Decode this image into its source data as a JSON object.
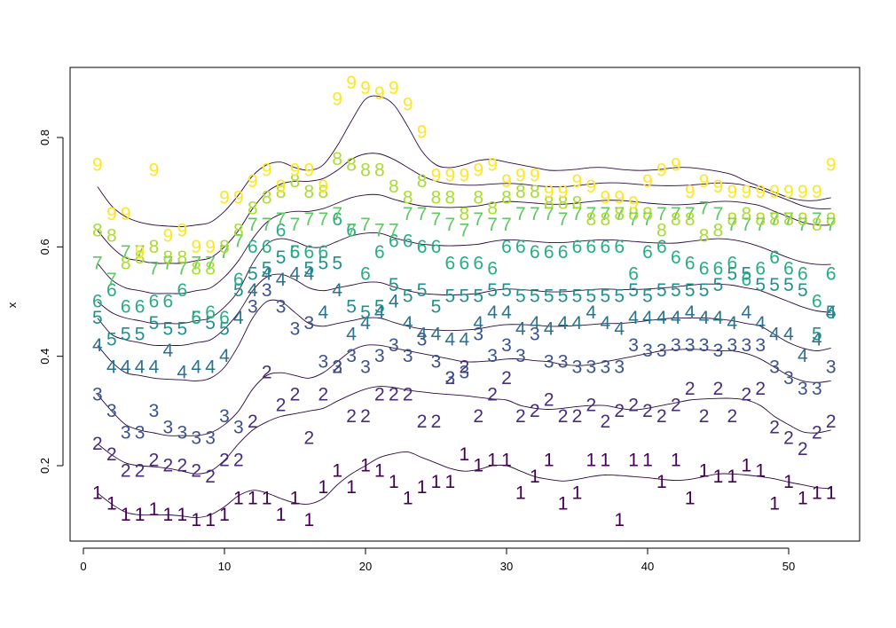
{
  "chart_data": {
    "type": "line",
    "xlabel": "",
    "ylabel": "x",
    "xlim": [
      0,
      55
    ],
    "ylim": [
      0.07,
      0.93
    ],
    "x_ticks": [
      0,
      10,
      20,
      30,
      40,
      50
    ],
    "y_ticks": [
      0.2,
      0.4,
      0.6,
      0.8
    ],
    "y_tick_labels": [
      "0.2",
      "0.4",
      "0.6",
      "0.8"
    ],
    "grid": false,
    "legend": "none",
    "x": [
      1,
      2,
      3,
      4,
      5,
      6,
      7,
      8,
      9,
      10,
      11,
      12,
      13,
      14,
      15,
      16,
      17,
      18,
      19,
      20,
      21,
      22,
      23,
      24,
      25,
      26,
      27,
      28,
      29,
      30,
      31,
      32,
      33,
      34,
      35,
      36,
      37,
      38,
      39,
      40,
      41,
      42,
      43,
      44,
      45,
      46,
      47,
      48,
      49,
      50,
      51,
      52,
      53
    ],
    "series": [
      {
        "name": "1",
        "color": "#440154",
        "symbol": "1",
        "values": [
          0.15,
          0.13,
          0.11,
          0.11,
          0.12,
          0.11,
          0.11,
          0.1,
          0.1,
          0.11,
          0.14,
          0.14,
          0.14,
          0.11,
          0.14,
          0.1,
          0.16,
          0.19,
          0.16,
          0.2,
          0.19,
          0.17,
          0.14,
          0.16,
          0.17,
          0.17,
          0.22,
          0.2,
          0.21,
          0.21,
          0.15,
          0.18,
          0.21,
          0.13,
          0.15,
          0.21,
          0.21,
          0.1,
          0.21,
          0.21,
          0.17,
          0.21,
          0.14,
          0.19,
          0.18,
          0.18,
          0.2,
          0.19,
          0.13,
          0.17,
          0.14,
          0.15,
          0.15
        ],
        "curve": [
          0.15,
          0.13,
          0.115,
          0.11,
          0.11,
          0.11,
          0.108,
          0.105,
          0.11,
          0.125,
          0.145,
          0.155,
          0.15,
          0.14,
          0.132,
          0.13,
          0.14,
          0.165,
          0.185,
          0.2,
          0.215,
          0.222,
          0.225,
          0.215,
          0.205,
          0.195,
          0.19,
          0.193,
          0.2,
          0.2,
          0.19,
          0.18,
          0.175,
          0.172,
          0.175,
          0.18,
          0.183,
          0.182,
          0.18,
          0.178,
          0.175,
          0.173,
          0.175,
          0.18,
          0.185,
          0.185,
          0.183,
          0.18,
          0.176,
          0.17,
          0.165,
          0.16,
          0.158
        ]
      },
      {
        "name": "2",
        "color": "#472D7B",
        "symbol": "2",
        "values": [
          0.24,
          0.22,
          0.19,
          0.19,
          0.21,
          0.2,
          0.2,
          0.19,
          0.18,
          0.21,
          0.21,
          0.28,
          0.37,
          0.31,
          0.33,
          0.25,
          0.33,
          0.38,
          0.29,
          0.29,
          0.33,
          0.33,
          0.33,
          0.28,
          0.28,
          0.36,
          0.38,
          0.29,
          0.33,
          0.36,
          0.29,
          0.3,
          0.32,
          0.29,
          0.29,
          0.31,
          0.28,
          0.3,
          0.31,
          0.3,
          0.29,
          0.31,
          0.34,
          0.29,
          0.34,
          0.29,
          0.33,
          0.34,
          0.27,
          0.25,
          0.23,
          0.26,
          0.28
        ],
        "curve": [
          0.24,
          0.22,
          0.205,
          0.2,
          0.198,
          0.195,
          0.19,
          0.185,
          0.19,
          0.21,
          0.24,
          0.265,
          0.28,
          0.29,
          0.295,
          0.3,
          0.305,
          0.318,
          0.33,
          0.34,
          0.345,
          0.343,
          0.338,
          0.335,
          0.332,
          0.33,
          0.328,
          0.325,
          0.322,
          0.32,
          0.31,
          0.305,
          0.303,
          0.305,
          0.308,
          0.31,
          0.31,
          0.305,
          0.302,
          0.305,
          0.31,
          0.315,
          0.32,
          0.322,
          0.323,
          0.323,
          0.32,
          0.31,
          0.29,
          0.275,
          0.262,
          0.26,
          0.265
        ]
      },
      {
        "name": "3",
        "color": "#3B528B",
        "symbol": "3",
        "values": [
          0.33,
          0.3,
          0.26,
          0.26,
          0.3,
          0.27,
          0.26,
          0.25,
          0.25,
          0.29,
          0.27,
          0.49,
          0.52,
          0.49,
          0.45,
          0.46,
          0.39,
          0.38,
          0.4,
          0.38,
          0.4,
          0.42,
          0.4,
          0.43,
          0.39,
          0.36,
          0.37,
          0.44,
          0.4,
          0.42,
          0.4,
          0.44,
          0.39,
          0.39,
          0.38,
          0.38,
          0.38,
          0.38,
          0.42,
          0.41,
          0.41,
          0.42,
          0.42,
          0.42,
          0.41,
          0.42,
          0.42,
          0.42,
          0.38,
          0.36,
          0.34,
          0.34,
          0.38
        ],
        "curve": [
          0.33,
          0.3,
          0.275,
          0.265,
          0.26,
          0.255,
          0.255,
          0.255,
          0.26,
          0.275,
          0.3,
          0.34,
          0.365,
          0.37,
          0.365,
          0.36,
          0.37,
          0.39,
          0.41,
          0.42,
          0.42,
          0.415,
          0.41,
          0.405,
          0.4,
          0.395,
          0.39,
          0.39,
          0.392,
          0.395,
          0.395,
          0.392,
          0.39,
          0.385,
          0.383,
          0.385,
          0.39,
          0.395,
          0.4,
          0.405,
          0.41,
          0.412,
          0.413,
          0.412,
          0.41,
          0.41,
          0.405,
          0.395,
          0.38,
          0.365,
          0.355,
          0.352,
          0.355
        ]
      },
      {
        "name": "4",
        "color": "#2C728E",
        "symbol": "4",
        "values": [
          0.42,
          0.38,
          0.38,
          0.38,
          0.38,
          0.41,
          0.37,
          0.38,
          0.38,
          0.4,
          0.47,
          0.52,
          0.55,
          0.54,
          0.55,
          0.55,
          0.48,
          0.52,
          0.44,
          0.46,
          0.48,
          0.5,
          0.46,
          0.44,
          0.44,
          0.43,
          0.43,
          0.46,
          0.48,
          0.48,
          0.45,
          0.46,
          0.45,
          0.46,
          0.46,
          0.48,
          0.46,
          0.45,
          0.47,
          0.47,
          0.47,
          0.47,
          0.48,
          0.47,
          0.47,
          0.46,
          0.48,
          0.46,
          0.44,
          0.44,
          0.4,
          0.43,
          0.48
        ],
        "curve": [
          0.42,
          0.39,
          0.37,
          0.365,
          0.36,
          0.358,
          0.357,
          0.355,
          0.36,
          0.38,
          0.42,
          0.47,
          0.5,
          0.5,
          0.48,
          0.46,
          0.455,
          0.46,
          0.465,
          0.47,
          0.47,
          0.462,
          0.455,
          0.45,
          0.448,
          0.447,
          0.448,
          0.45,
          0.455,
          0.458,
          0.458,
          0.457,
          0.455,
          0.455,
          0.456,
          0.458,
          0.46,
          0.46,
          0.462,
          0.465,
          0.468,
          0.47,
          0.47,
          0.47,
          0.468,
          0.465,
          0.46,
          0.455,
          0.44,
          0.425,
          0.415,
          0.41,
          0.415
        ]
      },
      {
        "name": "5",
        "color": "#21908C",
        "symbol": "5",
        "values": [
          0.47,
          0.43,
          0.44,
          0.44,
          0.46,
          0.45,
          0.45,
          0.47,
          0.46,
          0.45,
          0.52,
          0.55,
          0.56,
          0.58,
          0.59,
          0.56,
          0.57,
          0.57,
          0.49,
          0.48,
          0.49,
          0.53,
          0.51,
          0.52,
          0.49,
          0.51,
          0.51,
          0.51,
          0.52,
          0.52,
          0.51,
          0.51,
          0.51,
          0.51,
          0.51,
          0.51,
          0.51,
          0.51,
          0.52,
          0.51,
          0.52,
          0.52,
          0.52,
          0.52,
          0.53,
          0.55,
          0.55,
          0.53,
          0.53,
          0.53,
          0.52,
          0.44,
          0.48
        ],
        "curve": [
          0.47,
          0.44,
          0.43,
          0.425,
          0.42,
          0.42,
          0.42,
          0.425,
          0.43,
          0.45,
          0.48,
          0.52,
          0.545,
          0.55,
          0.54,
          0.525,
          0.52,
          0.525,
          0.53,
          0.535,
          0.535,
          0.527,
          0.52,
          0.515,
          0.513,
          0.512,
          0.513,
          0.515,
          0.52,
          0.523,
          0.522,
          0.52,
          0.518,
          0.518,
          0.52,
          0.522,
          0.523,
          0.522,
          0.522,
          0.523,
          0.525,
          0.527,
          0.53,
          0.532,
          0.532,
          0.53,
          0.525,
          0.52,
          0.51,
          0.5,
          0.49,
          0.483,
          0.48
        ]
      },
      {
        "name": "6",
        "color": "#27AD81",
        "symbol": "6",
        "values": [
          0.5,
          0.52,
          0.49,
          0.49,
          0.5,
          0.5,
          0.52,
          0.47,
          0.48,
          0.47,
          0.54,
          0.6,
          0.6,
          0.63,
          0.59,
          0.59,
          0.59,
          0.65,
          0.63,
          0.55,
          0.59,
          0.61,
          0.61,
          0.6,
          0.6,
          0.57,
          0.57,
          0.57,
          0.56,
          0.6,
          0.6,
          0.59,
          0.59,
          0.59,
          0.6,
          0.6,
          0.6,
          0.6,
          0.55,
          0.59,
          0.6,
          0.58,
          0.57,
          0.56,
          0.56,
          0.57,
          0.54,
          0.56,
          0.58,
          0.56,
          0.55,
          0.5,
          0.55
        ],
        "curve": [
          0.5,
          0.48,
          0.47,
          0.465,
          0.46,
          0.46,
          0.46,
          0.465,
          0.47,
          0.49,
          0.52,
          0.57,
          0.605,
          0.615,
          0.61,
          0.6,
          0.6,
          0.61,
          0.62,
          0.625,
          0.625,
          0.617,
          0.61,
          0.605,
          0.603,
          0.602,
          0.603,
          0.605,
          0.61,
          0.613,
          0.612,
          0.61,
          0.608,
          0.608,
          0.61,
          0.612,
          0.613,
          0.612,
          0.61,
          0.608,
          0.607,
          0.607,
          0.61,
          0.613,
          0.615,
          0.613,
          0.608,
          0.6,
          0.59,
          0.58,
          0.572,
          0.568,
          0.568
        ]
      },
      {
        "name": "7",
        "color": "#5EC962",
        "symbol": "7",
        "values": [
          0.57,
          0.54,
          0.59,
          0.59,
          0.56,
          0.57,
          0.56,
          0.57,
          0.57,
          0.59,
          0.61,
          0.64,
          0.64,
          0.65,
          0.64,
          0.65,
          0.65,
          0.66,
          0.63,
          0.64,
          0.63,
          0.63,
          0.66,
          0.66,
          0.65,
          0.64,
          0.63,
          0.65,
          0.64,
          0.64,
          0.66,
          0.66,
          0.66,
          0.65,
          0.66,
          0.66,
          0.66,
          0.66,
          0.65,
          0.65,
          0.66,
          0.66,
          0.66,
          0.67,
          0.66,
          0.64,
          0.64,
          0.64,
          0.65,
          0.65,
          0.64,
          0.65,
          0.64
        ],
        "curve": [
          0.57,
          0.54,
          0.525,
          0.52,
          0.515,
          0.515,
          0.515,
          0.52,
          0.525,
          0.545,
          0.575,
          0.615,
          0.645,
          0.66,
          0.665,
          0.665,
          0.67,
          0.68,
          0.69,
          0.695,
          0.695,
          0.687,
          0.68,
          0.675,
          0.673,
          0.672,
          0.673,
          0.675,
          0.68,
          0.683,
          0.682,
          0.68,
          0.678,
          0.678,
          0.68,
          0.683,
          0.685,
          0.685,
          0.683,
          0.68,
          0.678,
          0.677,
          0.678,
          0.68,
          0.683,
          0.683,
          0.68,
          0.675,
          0.665,
          0.655,
          0.645,
          0.64,
          0.64
        ]
      },
      {
        "name": "8",
        "color": "#AADC32",
        "symbol": "8",
        "values": [
          0.63,
          0.62,
          0.57,
          0.58,
          0.6,
          0.58,
          0.58,
          0.56,
          0.56,
          0.6,
          0.63,
          0.67,
          0.69,
          0.7,
          0.72,
          0.7,
          0.7,
          0.76,
          0.75,
          0.74,
          0.74,
          0.71,
          0.69,
          0.72,
          0.69,
          0.69,
          0.66,
          0.69,
          0.67,
          0.69,
          0.7,
          0.7,
          0.68,
          0.68,
          0.68,
          0.65,
          0.65,
          0.66,
          0.66,
          0.66,
          0.63,
          0.65,
          0.65,
          0.62,
          0.63,
          0.65,
          0.66,
          0.65,
          0.65,
          0.65,
          0.65,
          0.64,
          0.65
        ],
        "curve": [
          0.63,
          0.6,
          0.58,
          0.575,
          0.57,
          0.57,
          0.57,
          0.575,
          0.58,
          0.6,
          0.63,
          0.67,
          0.7,
          0.715,
          0.72,
          0.72,
          0.725,
          0.74,
          0.76,
          0.77,
          0.77,
          0.76,
          0.745,
          0.73,
          0.72,
          0.715,
          0.713,
          0.713,
          0.715,
          0.716,
          0.715,
          0.712,
          0.71,
          0.71,
          0.712,
          0.715,
          0.717,
          0.717,
          0.715,
          0.713,
          0.712,
          0.712,
          0.713,
          0.715,
          0.717,
          0.716,
          0.712,
          0.705,
          0.695,
          0.685,
          0.675,
          0.67,
          0.67
        ]
      },
      {
        "name": "9",
        "color": "#FDE725",
        "symbol": "9",
        "values": [
          0.75,
          0.66,
          0.66,
          0.59,
          0.74,
          0.62,
          0.63,
          0.6,
          0.6,
          0.69,
          0.69,
          0.72,
          0.74,
          0.71,
          0.74,
          0.74,
          0.71,
          0.87,
          0.9,
          0.89,
          0.88,
          0.89,
          0.86,
          0.81,
          0.73,
          0.73,
          0.73,
          0.74,
          0.75,
          0.72,
          0.73,
          0.73,
          0.7,
          0.7,
          0.72,
          0.71,
          0.69,
          0.69,
          0.68,
          0.72,
          0.74,
          0.75,
          0.7,
          0.72,
          0.71,
          0.7,
          0.7,
          0.7,
          0.7,
          0.7,
          0.7,
          0.7,
          0.75
        ],
        "curve": [
          0.71,
          0.675,
          0.655,
          0.645,
          0.64,
          0.638,
          0.637,
          0.64,
          0.645,
          0.665,
          0.695,
          0.73,
          0.75,
          0.755,
          0.745,
          0.74,
          0.75,
          0.785,
          0.83,
          0.87,
          0.875,
          0.86,
          0.82,
          0.775,
          0.75,
          0.745,
          0.75,
          0.758,
          0.76,
          0.755,
          0.75,
          0.745,
          0.74,
          0.74,
          0.742,
          0.745,
          0.745,
          0.742,
          0.74,
          0.74,
          0.742,
          0.745,
          0.745,
          0.742,
          0.738,
          0.732,
          0.72,
          0.71,
          0.7,
          0.69,
          0.685,
          0.685,
          0.69
        ]
      }
    ]
  }
}
